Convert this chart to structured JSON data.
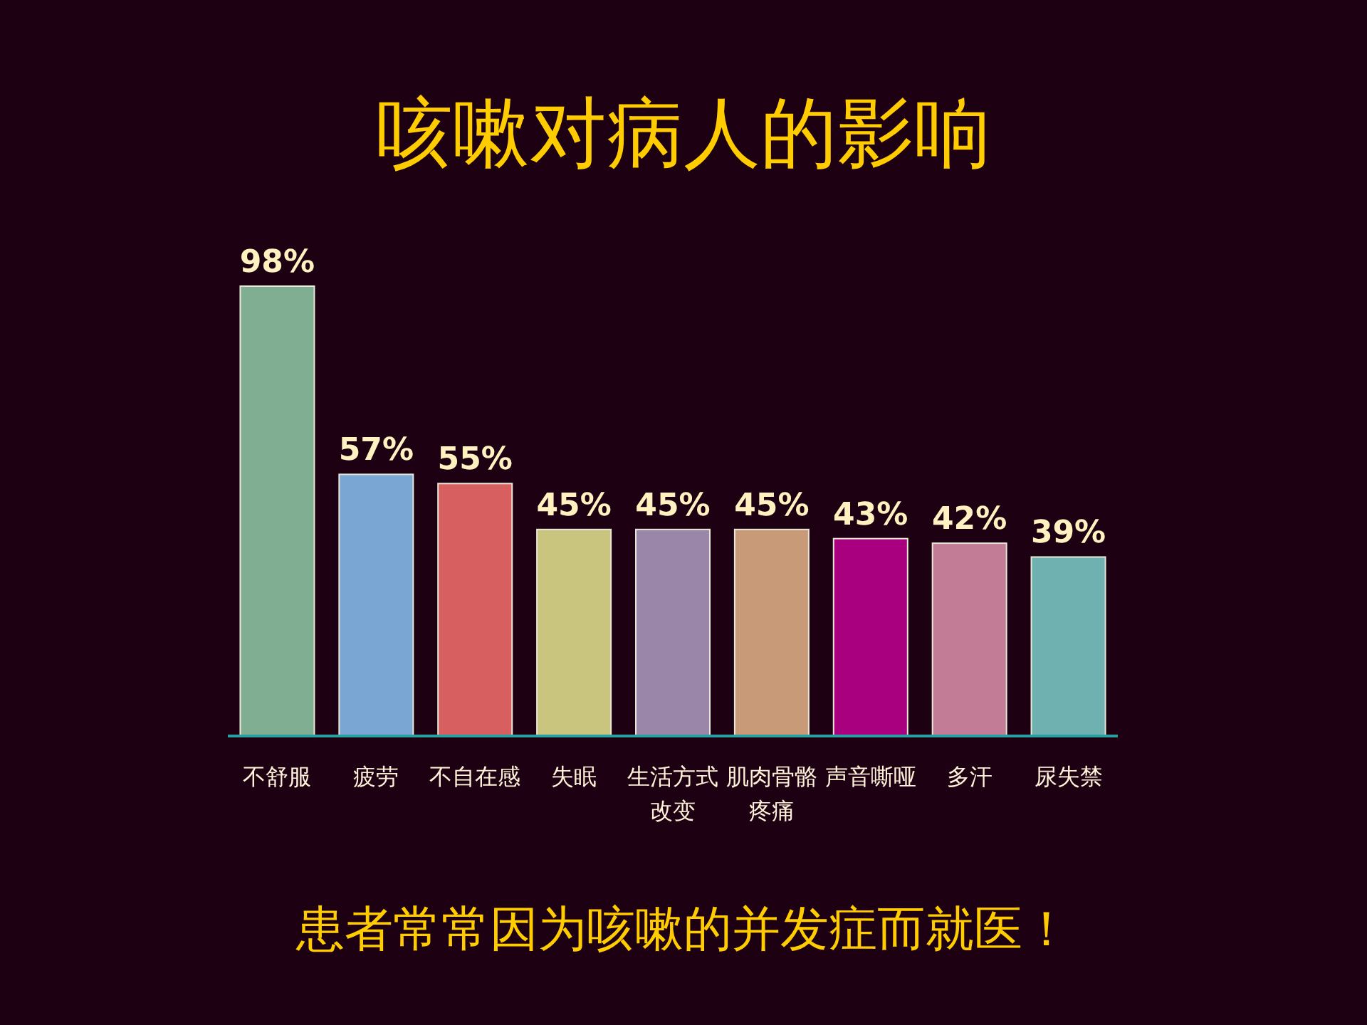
{
  "chart_data": {
    "type": "bar",
    "title": "咳嗽对病人的影响",
    "categories": [
      "不舒服",
      "疲劳",
      "不自在感",
      "失眠",
      "生活方式改变",
      "肌肉骨骼疼痛",
      "声音嘶哑",
      "多汗",
      "尿失禁"
    ],
    "values": [
      98,
      57,
      55,
      45,
      45,
      45,
      43,
      42,
      39
    ],
    "value_labels": [
      "98%",
      "57%",
      "55%",
      "45%",
      "45%",
      "45%",
      "43%",
      "42%",
      "39%"
    ],
    "colors": [
      "#7fae92",
      "#7aa6d4",
      "#d85f5f",
      "#c9c47e",
      "#9a86a8",
      "#c89a78",
      "#a8007e",
      "#c27c96",
      "#6fb0b0"
    ],
    "annotations": [
      "患者常常因为咳嗽的并发症而就医！"
    ]
  }
}
